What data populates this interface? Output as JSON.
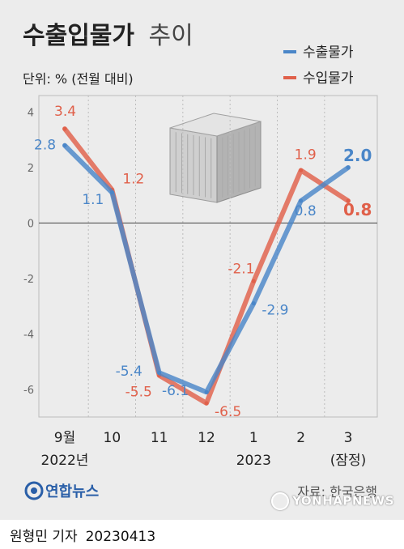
{
  "title_bold": "수출입물가",
  "title_light": "추이",
  "unit": "단위: % (전월 대비)",
  "source": "자료: 한국은행",
  "logo_text": "연합뉴스",
  "byline": "원형민 기자",
  "date": "20230413",
  "watermark": "YONHAPNEWS",
  "colors": {
    "export": "#4a86c8",
    "import": "#e0604a",
    "background": "#ececec",
    "logo": "#2a5fa8"
  },
  "chart_data": {
    "type": "line",
    "categories": [
      "9월",
      "10",
      "11",
      "12",
      "1",
      "2",
      "3"
    ],
    "category_sublabels": [
      "2022년",
      "",
      "",
      "",
      "2023",
      "",
      "(잠정)"
    ],
    "ylim": [
      -7,
      4.6
    ],
    "yticks": [
      "4",
      "2",
      "0",
      "-2",
      "-4",
      "-6"
    ],
    "series": [
      {
        "name": "수출물가",
        "color": "#4a86c8",
        "values": [
          2.8,
          1.1,
          -5.4,
          -6.1,
          -2.9,
          0.8,
          2.0
        ],
        "labels": [
          "2.8",
          "1.1",
          "-5.4",
          "-6.1",
          "-2.9",
          "0.8",
          "2.0"
        ]
      },
      {
        "name": "수입물가",
        "color": "#e0604a",
        "values": [
          3.4,
          1.2,
          -5.5,
          -6.5,
          -2.1,
          1.9,
          0.8
        ],
        "labels": [
          "3.4",
          "1.2",
          "-5.5",
          "-6.5",
          "-2.1",
          "1.9",
          "0.8"
        ]
      }
    ]
  }
}
